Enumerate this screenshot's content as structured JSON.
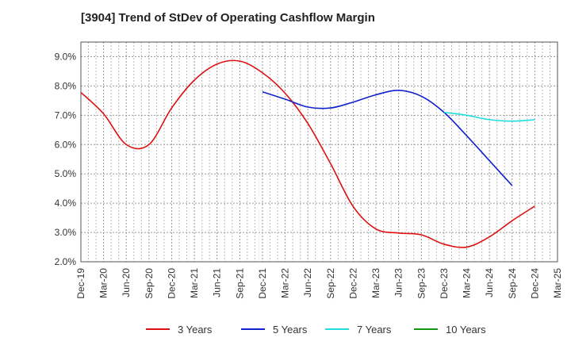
{
  "chart_data": {
    "type": "line",
    "title": "[3904]  Trend of StDev of Operating Cashflow Margin",
    "xlabel": "",
    "ylabel": "",
    "x_ticks": [
      "Dec-19",
      "Mar-20",
      "Jun-20",
      "Sep-20",
      "Dec-20",
      "Mar-21",
      "Jun-21",
      "Sep-21",
      "Dec-21",
      "Mar-22",
      "Jun-22",
      "Sep-22",
      "Dec-22",
      "Mar-23",
      "Jun-23",
      "Sep-23",
      "Dec-23",
      "Mar-24",
      "Jun-24",
      "Sep-24",
      "Dec-24",
      "Mar-25"
    ],
    "y_ticks": [
      "2.0%",
      "3.0%",
      "4.0%",
      "5.0%",
      "6.0%",
      "7.0%",
      "8.0%",
      "9.0%"
    ],
    "ylim": [
      2.0,
      9.5
    ],
    "grid": true,
    "legend_position": "bottom",
    "series": [
      {
        "name": "3 Years",
        "color": "#dd1111",
        "values": [
          7.78,
          7.05,
          6.0,
          6.0,
          7.25,
          8.2,
          8.75,
          8.85,
          8.45,
          7.75,
          6.72,
          5.35,
          3.88,
          3.12,
          2.98,
          2.92,
          2.6,
          2.5,
          2.85,
          3.4,
          3.9,
          null
        ]
      },
      {
        "name": "5 Years",
        "color": "#1122cc",
        "values": [
          null,
          null,
          null,
          null,
          null,
          null,
          null,
          null,
          7.8,
          7.55,
          7.28,
          7.25,
          7.45,
          7.7,
          7.85,
          7.65,
          7.1,
          6.3,
          5.45,
          4.6,
          null,
          null
        ]
      },
      {
        "name": "7 Years",
        "color": "#22dddd",
        "values": [
          null,
          null,
          null,
          null,
          null,
          null,
          null,
          null,
          null,
          null,
          null,
          null,
          null,
          null,
          null,
          null,
          7.1,
          7.0,
          6.85,
          6.8,
          6.85,
          null
        ]
      },
      {
        "name": "10 Years",
        "color": "#119911",
        "values": [
          null,
          null,
          null,
          null,
          null,
          null,
          null,
          null,
          null,
          null,
          null,
          null,
          null,
          null,
          null,
          null,
          null,
          null,
          null,
          null,
          null,
          null
        ]
      }
    ]
  }
}
